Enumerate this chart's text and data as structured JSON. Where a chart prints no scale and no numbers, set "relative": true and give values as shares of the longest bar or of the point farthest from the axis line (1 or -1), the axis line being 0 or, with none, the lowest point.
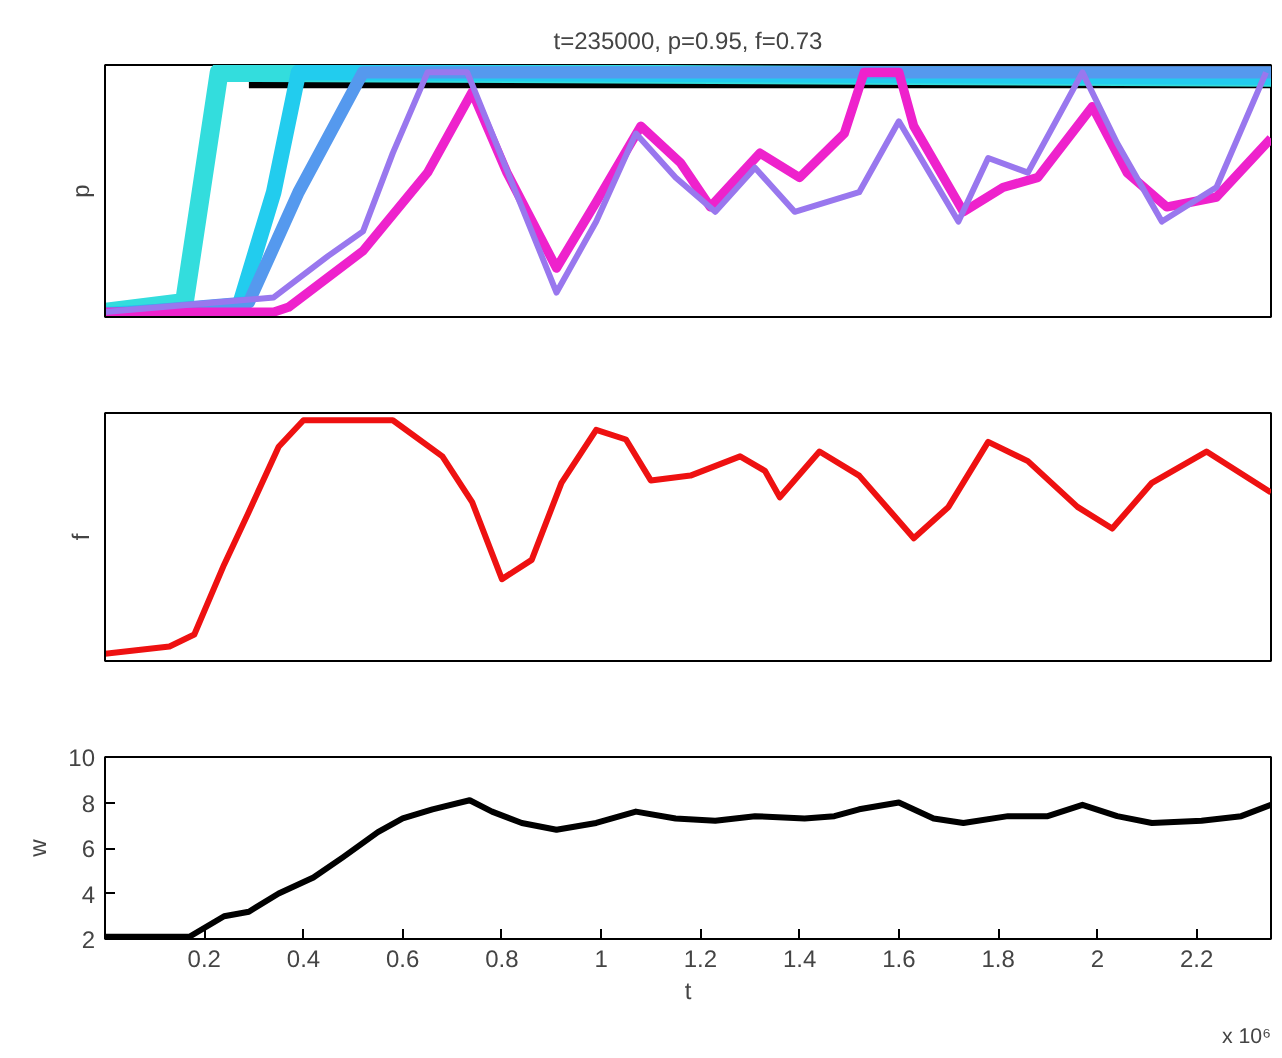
{
  "chart_data": [
    {
      "type": "line",
      "title": "t=235000, p=0.95, f=0.73",
      "ylabel": "p",
      "relative": true,
      "xlim": [
        0,
        2.35
      ],
      "xticks": [
        0.2,
        0.4,
        0.6,
        0.8,
        1,
        1.2,
        1.4,
        1.6,
        1.8,
        2,
        2.2
      ],
      "tick_labels": false,
      "grid": false,
      "marker": "none",
      "line_style": "solid",
      "series": [
        {
          "color": "#000000",
          "x": [
            0.29,
            2.35
          ],
          "values": [
            0.98,
            0.98
          ]
        },
        {
          "color": "#33dddd",
          "x": [
            0,
            0.16,
            0.23,
            2.35
          ],
          "values": [
            0.02,
            0.06,
            1.0,
            0.98
          ]
        },
        {
          "color": "#22ccee",
          "x": [
            0,
            0.27,
            0.34,
            0.39,
            2.35
          ],
          "values": [
            0.01,
            0.04,
            0.51,
            1.0,
            0.98
          ]
        },
        {
          "color": "#5599ee",
          "x": [
            0,
            0.29,
            0.39,
            0.52,
            2.35
          ],
          "values": [
            0.01,
            0.06,
            0.51,
            1.0,
            1.0
          ]
        },
        {
          "color": "#ee22cc",
          "x": [
            0,
            0.34,
            0.37,
            0.52,
            0.65,
            0.74,
            0.81,
            0.91,
            0.99,
            1.08,
            1.16,
            1.22,
            1.32,
            1.4,
            1.49,
            1.53,
            1.6,
            1.63,
            1.73,
            1.81,
            1.88,
            1.99,
            2.06,
            2.14,
            2.24,
            2.35
          ],
          "values": [
            0.02,
            0.02,
            0.04,
            0.27,
            0.59,
            0.92,
            0.59,
            0.2,
            0.47,
            0.78,
            0.63,
            0.45,
            0.67,
            0.57,
            0.75,
            1.0,
            1.0,
            0.78,
            0.43,
            0.53,
            0.57,
            0.86,
            0.59,
            0.45,
            0.49,
            0.73
          ]
        },
        {
          "color": "#9977ee",
          "x": [
            0,
            0.34,
            0.45,
            0.52,
            0.58,
            0.65,
            0.73,
            0.82,
            0.91,
            0.99,
            1.07,
            1.15,
            1.23,
            1.31,
            1.39,
            1.52,
            1.6,
            1.72,
            1.78,
            1.86,
            1.97,
            2.04,
            2.13,
            2.24,
            2.34
          ],
          "values": [
            0.02,
            0.08,
            0.25,
            0.35,
            0.67,
            1.0,
            1.0,
            0.55,
            0.1,
            0.39,
            0.75,
            0.57,
            0.43,
            0.61,
            0.43,
            0.51,
            0.8,
            0.39,
            0.65,
            0.59,
            1.0,
            0.71,
            0.39,
            0.53,
            1.0
          ]
        }
      ]
    },
    {
      "type": "line",
      "ylabel": "f",
      "relative": true,
      "xlim": [
        0,
        2.35
      ],
      "xticks": [
        0.2,
        0.4,
        0.6,
        0.8,
        1,
        1.2,
        1.4,
        1.6,
        1.8,
        2,
        2.2
      ],
      "tick_labels": false,
      "grid": false,
      "marker": "none",
      "line_style": "solid",
      "series": [
        {
          "color": "#ee1111",
          "x": [
            0,
            0.13,
            0.18,
            0.24,
            0.29,
            0.35,
            0.4,
            0.58,
            0.68,
            0.74,
            0.8,
            0.86,
            0.92,
            0.99,
            1.05,
            1.1,
            1.18,
            1.28,
            1.33,
            1.36,
            1.44,
            1.52,
            1.63,
            1.7,
            1.78,
            1.86,
            1.96,
            2.03,
            2.11,
            2.22,
            2.35
          ],
          "values": [
            0.03,
            0.06,
            0.11,
            0.4,
            0.62,
            0.89,
            1.0,
            1.0,
            0.85,
            0.66,
            0.34,
            0.42,
            0.74,
            0.96,
            0.92,
            0.75,
            0.77,
            0.85,
            0.79,
            0.68,
            0.87,
            0.77,
            0.51,
            0.64,
            0.91,
            0.83,
            0.64,
            0.55,
            0.74,
            0.87,
            0.7
          ]
        }
      ]
    },
    {
      "type": "line",
      "xlabel": "t",
      "ylabel": "w",
      "xlim": [
        0,
        2.35
      ],
      "ylim": [
        2,
        10
      ],
      "xticks": [
        0.2,
        0.4,
        0.6,
        0.8,
        1,
        1.2,
        1.4,
        1.6,
        1.8,
        2,
        2.2
      ],
      "yticks": [
        2,
        4,
        6,
        8,
        10
      ],
      "grid": false,
      "marker": "none",
      "line_style": "solid",
      "annotations": [
        "x 10⁶"
      ],
      "series": [
        {
          "color": "#000000",
          "x": [
            0,
            0.17,
            0.24,
            0.29,
            0.35,
            0.42,
            0.48,
            0.55,
            0.6,
            0.66,
            0.735,
            0.78,
            0.84,
            0.91,
            0.99,
            1.07,
            1.15,
            1.23,
            1.31,
            1.41,
            1.47,
            1.52,
            1.6,
            1.67,
            1.73,
            1.82,
            1.9,
            1.97,
            2.04,
            2.11,
            2.21,
            2.29,
            2.35
          ],
          "values": [
            2.1,
            2.1,
            3.0,
            3.2,
            4.0,
            4.7,
            5.6,
            6.7,
            7.3,
            7.7,
            8.1,
            7.6,
            7.1,
            6.8,
            7.1,
            7.6,
            7.3,
            7.2,
            7.4,
            7.3,
            7.4,
            7.7,
            8.0,
            7.3,
            7.1,
            7.4,
            7.4,
            7.9,
            7.4,
            7.1,
            7.2,
            7.4,
            7.9
          ]
        }
      ]
    }
  ]
}
